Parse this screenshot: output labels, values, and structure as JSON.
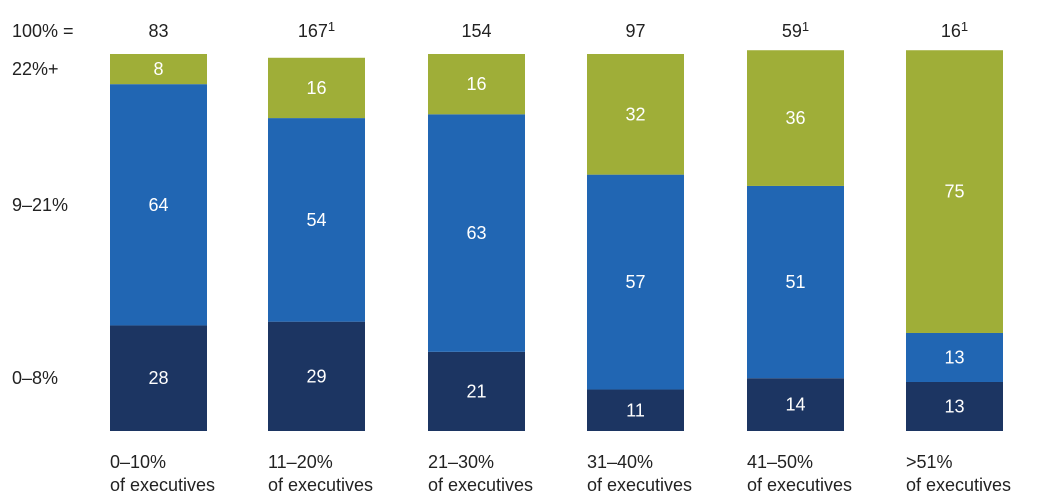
{
  "chart_data": {
    "type": "stacked-bar",
    "header_label": "100% =",
    "totals": [
      {
        "value": "83",
        "sup": ""
      },
      {
        "value": "167",
        "sup": "1"
      },
      {
        "value": "154",
        "sup": ""
      },
      {
        "value": "97",
        "sup": ""
      },
      {
        "value": "59",
        "sup": "1"
      },
      {
        "value": "16",
        "sup": "1"
      }
    ],
    "categories": [
      [
        "0–10%",
        "of executives"
      ],
      [
        "11–20%",
        "of executives"
      ],
      [
        "21–30%",
        "of executives"
      ],
      [
        "31–40%",
        "of executives"
      ],
      [
        "41–50%",
        "of executives"
      ],
      [
        ">51%",
        "of executives"
      ]
    ],
    "series": [
      {
        "name": "0–8%",
        "color": "#1c3562",
        "values": [
          28,
          29,
          21,
          11,
          14,
          13
        ]
      },
      {
        "name": "9–21%",
        "color": "#2166b3",
        "values": [
          64,
          54,
          63,
          57,
          51,
          13
        ]
      },
      {
        "name": "22%+",
        "color": "#9fae38",
        "values": [
          8,
          16,
          16,
          32,
          36,
          75
        ]
      }
    ],
    "ylim": [
      0,
      100
    ],
    "label_color": "#ffffff"
  }
}
